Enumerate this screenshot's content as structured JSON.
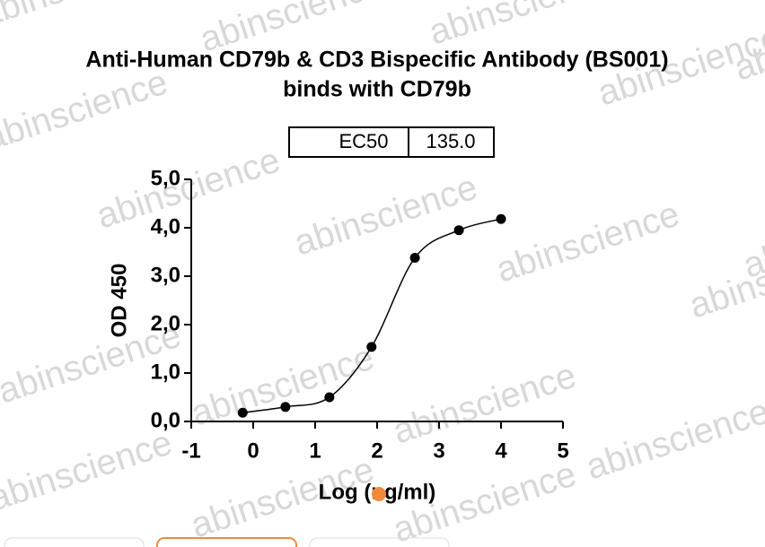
{
  "chart_data": {
    "type": "scatter",
    "title": [
      "Anti-Human CD79b & CD3 Bispecific Antibody (BS001)",
      "binds with CD79b"
    ],
    "annotation_table": [
      "EC50",
      "135.0"
    ],
    "x_label": "Log (ng/ml)",
    "y_label": "OD 450",
    "watermark": "abinscience",
    "xlim": [
      -1,
      5
    ],
    "xticks": [
      -1,
      0,
      1,
      2,
      3,
      4,
      5
    ],
    "ylim": [
      0,
      5
    ],
    "yticks": [
      {
        "value": 0,
        "label": "0,0"
      },
      {
        "value": 1,
        "label": "1,0"
      },
      {
        "value": 2,
        "label": "2,0"
      },
      {
        "value": 3,
        "label": "3,0"
      },
      {
        "value": 4,
        "label": "4,0"
      },
      {
        "value": 5,
        "label": "5,0"
      }
    ],
    "series": [
      {
        "color": "#000000",
        "x": [
          -0.17,
          0.52,
          1.23,
          1.91,
          2.61,
          3.32,
          4.0
        ],
        "values": [
          0.18,
          0.3,
          0.5,
          1.54,
          3.38,
          3.95,
          4.18
        ]
      }
    ]
  }
}
